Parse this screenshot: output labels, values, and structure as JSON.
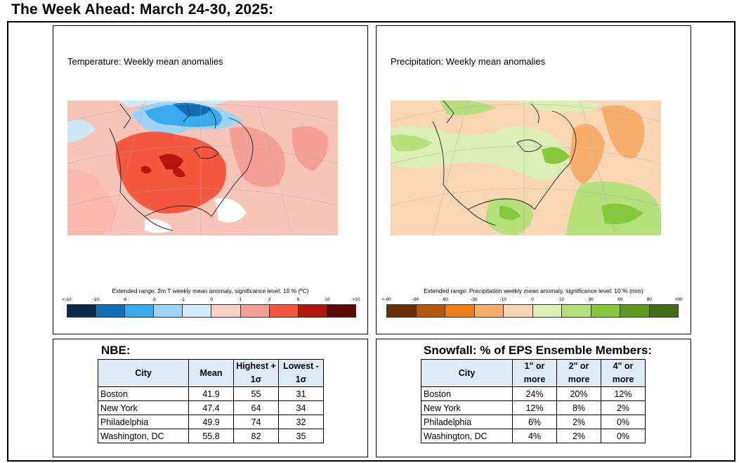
{
  "page_title": "The Week Ahead: March 24-30, 2025:",
  "temperature_panel": {
    "title": "Temperature: Weekly mean anomalies",
    "caption": "Extended range: 2m T weekly mean anomaly, significance level: 10 % (ºC)",
    "ticks": [
      "<-10",
      "-10",
      "-6",
      "-3",
      "-1",
      "0",
      "1",
      "3",
      "6",
      "10",
      ">10"
    ],
    "colors": [
      "#0b2a4a",
      "#0f6fb5",
      "#3aa9ee",
      "#9dd3f6",
      "#d3ecfa",
      "#fbd0c8",
      "#f5a095",
      "#f5583e",
      "#b5160c",
      "#5c0a05"
    ]
  },
  "precip_panel": {
    "title": "Precipitation: Weekly mean anomalies",
    "caption": "Extended range: Precipitation weekly mean anomaly, significance level: 10 % (mm)",
    "ticks": [
      "<-90",
      "-90",
      "-60",
      "-30",
      "-10",
      "0",
      "10",
      "30",
      "60",
      "90",
      ">90"
    ],
    "colors": [
      "#6b3002",
      "#b4590c",
      "#f07d1a",
      "#f7ae6b",
      "#fbd6b4",
      "#dcefb4",
      "#b5e07c",
      "#86c83b",
      "#5e9a1f",
      "#466b12"
    ]
  },
  "nbe": {
    "title": "NBE:",
    "headers": [
      "City",
      "Mean",
      "Highest + 1σ",
      "Lowest - 1σ"
    ],
    "rows": [
      [
        "Boston",
        "41.9",
        "55",
        "31"
      ],
      [
        "New York",
        "47.4",
        "64",
        "34"
      ],
      [
        "Philadelphia",
        "49.9",
        "74",
        "32"
      ],
      [
        "Washington, DC",
        "55.8",
        "82",
        "35"
      ]
    ]
  },
  "snowfall": {
    "title": "Snowfall: % of EPS Ensemble Members:",
    "headers": [
      "City",
      "1\" or more",
      "2\" or more",
      "4\" or more"
    ],
    "rows": [
      [
        "Boston",
        "24%",
        "20%",
        "12%"
      ],
      [
        "New York",
        "12%",
        "8%",
        "2%"
      ],
      [
        "Philadelphia",
        "6%",
        "2%",
        "0%"
      ],
      [
        "Washington, DC",
        "4%",
        "2%",
        "0%"
      ]
    ]
  }
}
